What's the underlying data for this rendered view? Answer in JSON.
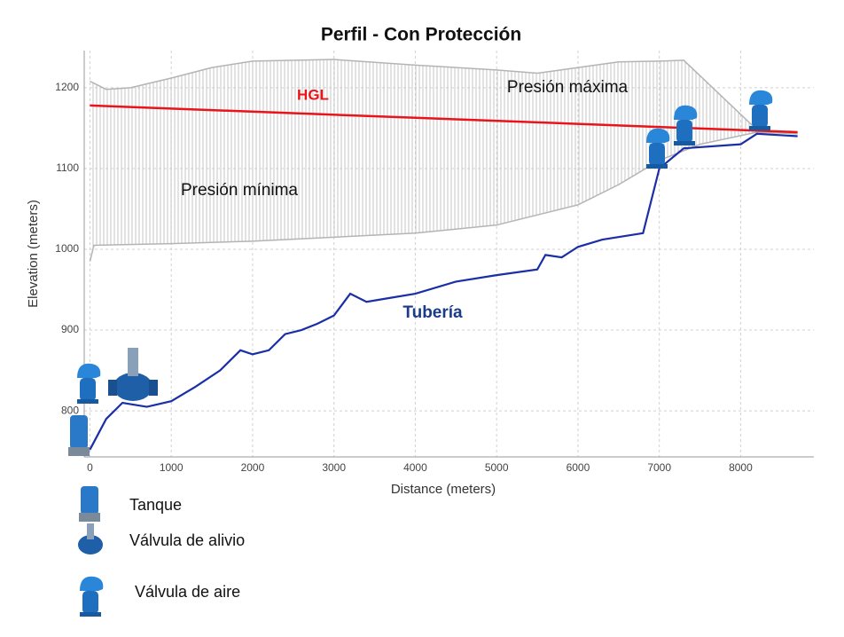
{
  "chart_data": {
    "type": "line",
    "title": "Perfil - Con Protección",
    "x_label": "Distance (meters)",
    "y_label": "Elevation (meters)",
    "xlim": [
      -70,
      8900
    ],
    "ylim": [
      743,
      1246
    ],
    "xticks": [
      0,
      1000,
      2000,
      3000,
      4000,
      5000,
      6000,
      7000,
      8000
    ],
    "yticks": [
      800,
      900,
      1000,
      1100,
      1200
    ],
    "grid": true,
    "series": [
      {
        "name": "Presión máxima",
        "color": "#b4b4b4",
        "x": [
          0,
          200,
          500,
          1000,
          1500,
          2000,
          3000,
          4000,
          5000,
          5500,
          6000,
          6500,
          7000,
          7300,
          8200,
          8700
        ],
        "values": [
          1208,
          1198,
          1200,
          1212,
          1225,
          1233,
          1235,
          1228,
          1222,
          1218,
          1225,
          1232,
          1233,
          1234,
          1148,
          1143
        ]
      },
      {
        "name": "Presión mínima",
        "color": "#b4b4b4",
        "x": [
          0,
          50,
          1000,
          2000,
          3000,
          4000,
          5000,
          6000,
          6500,
          7000,
          7500,
          8200,
          8700
        ],
        "values": [
          985,
          1005,
          1007,
          1010,
          1015,
          1020,
          1030,
          1055,
          1080,
          1110,
          1130,
          1145,
          1143
        ]
      },
      {
        "name": "HGL",
        "color": "#e8141a",
        "x": [
          0,
          8700
        ],
        "values": [
          1178,
          1145
        ]
      },
      {
        "name": "Tubería",
        "color": "#1a2fa6",
        "x": [
          0,
          200,
          400,
          700,
          1000,
          1300,
          1600,
          1850,
          2000,
          2200,
          2400,
          2600,
          2800,
          3000,
          3200,
          3400,
          3700,
          4000,
          4500,
          5000,
          5500,
          5600,
          5800,
          6000,
          6300,
          6800,
          7000,
          7300,
          8000,
          8200,
          8700
        ],
        "values": [
          752,
          790,
          810,
          805,
          812,
          830,
          850,
          875,
          870,
          875,
          895,
          900,
          908,
          918,
          945,
          935,
          940,
          945,
          960,
          968,
          975,
          993,
          990,
          1003,
          1012,
          1020,
          1100,
          1125,
          1130,
          1143,
          1140
        ]
      }
    ],
    "legend": [
      "Tanque",
      "Válvula de alivio",
      "Válvula de aire"
    ]
  }
}
